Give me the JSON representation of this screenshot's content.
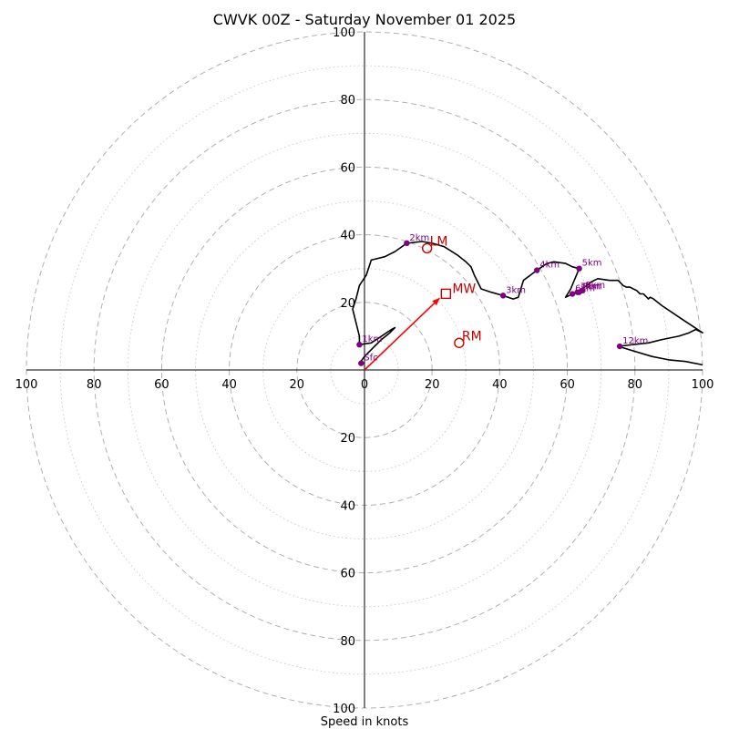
{
  "chart_data": {
    "type": "hodograph",
    "title": "CWVK 00Z - Saturday November 01 2025",
    "xlabel": "Speed in knots",
    "max_speed": 100,
    "ring_major": [
      20,
      40,
      60,
      80,
      100
    ],
    "ring_minor": [
      10,
      30,
      50,
      70,
      90
    ],
    "x_tick_labels": [
      {
        "value": -100,
        "label": "100"
      },
      {
        "value": -80,
        "label": "80"
      },
      {
        "value": -60,
        "label": "60"
      },
      {
        "value": -40,
        "label": "40"
      },
      {
        "value": -20,
        "label": "20"
      },
      {
        "value": 0,
        "label": "0"
      },
      {
        "value": 20,
        "label": "20"
      },
      {
        "value": 40,
        "label": "40"
      },
      {
        "value": 60,
        "label": "60"
      },
      {
        "value": 80,
        "label": "80"
      },
      {
        "value": 100,
        "label": "100"
      }
    ],
    "y_tick_labels": [
      {
        "value": 100,
        "label": "100"
      },
      {
        "value": 80,
        "label": "80"
      },
      {
        "value": 60,
        "label": "60"
      },
      {
        "value": 40,
        "label": "40"
      },
      {
        "value": 20,
        "label": "20"
      },
      {
        "value": -20,
        "label": "20"
      },
      {
        "value": -40,
        "label": "40"
      },
      {
        "value": -60,
        "label": "60"
      },
      {
        "value": -80,
        "label": "80"
      },
      {
        "value": -100,
        "label": "100"
      }
    ],
    "hodograph": {
      "u": [
        -1.5,
        0,
        3,
        5,
        7.5,
        9,
        8,
        5,
        2,
        -1.5,
        -1.5,
        -3.5,
        -2.5,
        -1.5,
        0.5,
        2,
        6,
        9,
        12.5,
        17,
        20,
        23.5,
        27.5,
        30,
        31.5,
        32.5,
        34.5,
        37.5,
        41,
        44,
        45.5,
        47,
        51,
        54,
        56,
        59.5,
        61.5,
        63.5,
        61,
        59.5,
        60.5,
        61.5,
        63,
        64.5,
        67,
        69,
        72.5,
        75,
        76.5,
        77.5,
        78.5,
        79.5,
        80.5,
        81.5,
        82.5,
        83.5,
        84,
        84.5,
        85.5,
        88,
        91,
        94,
        97,
        100,
        98,
        96,
        93,
        88,
        84,
        75,
        80,
        85,
        90,
        95,
        100
      ],
      "v": [
        2,
        4,
        7,
        9,
        11,
        12.5,
        12,
        10,
        8,
        7.5,
        10,
        18,
        21,
        25,
        28,
        32.5,
        33.5,
        35,
        37.5,
        38,
        37.5,
        36.5,
        34,
        32,
        30.5,
        28,
        24,
        23,
        22,
        21,
        21.5,
        26.5,
        29.5,
        31.5,
        32,
        31.5,
        30.5,
        30,
        24,
        21.5,
        22,
        22.5,
        23,
        24,
        26,
        27,
        26.5,
        26.5,
        25,
        24.5,
        24.5,
        24,
        23.5,
        22.5,
        22.5,
        21.5,
        21,
        21.5,
        21,
        19,
        17,
        15,
        13,
        11,
        12,
        11,
        10,
        9,
        8,
        7,
        5.5,
        4,
        3,
        2.5,
        1.5
      ]
    },
    "height_markers": [
      {
        "label": "Sfc",
        "u": -1,
        "v": 2
      },
      {
        "label": "1km",
        "u": -1.5,
        "v": 7.5
      },
      {
        "label": "2km",
        "u": 12.5,
        "v": 37.5
      },
      {
        "label": "3km",
        "u": 41,
        "v": 22
      },
      {
        "label": "4km",
        "u": 51,
        "v": 29.5
      },
      {
        "label": "5km",
        "u": 63.5,
        "v": 30
      },
      {
        "label": "6km",
        "u": 61.5,
        "v": 22.5
      },
      {
        "label": "7km",
        "u": 63,
        "v": 23
      },
      {
        "label": "8km",
        "u": 63.5,
        "v": 23
      },
      {
        "label": "9km",
        "u": 64.5,
        "v": 23.5
      },
      {
        "label": "12km",
        "u": 75.5,
        "v": 7
      }
    ],
    "storm_motion": {
      "mean_wind": {
        "label": "MW",
        "u": 23,
        "v": 22
      },
      "left_mover": {
        "label": "LM",
        "u": 18.5,
        "v": 36
      },
      "right_mover": {
        "label": "RM",
        "u": 28,
        "v": 8
      }
    },
    "colors": {
      "hodograph": "#000000",
      "height_marker": "#800080",
      "storm_motion": "#cc0000",
      "mean_wind_vector": "#ff0000",
      "ring": "#b0b0b0"
    }
  }
}
